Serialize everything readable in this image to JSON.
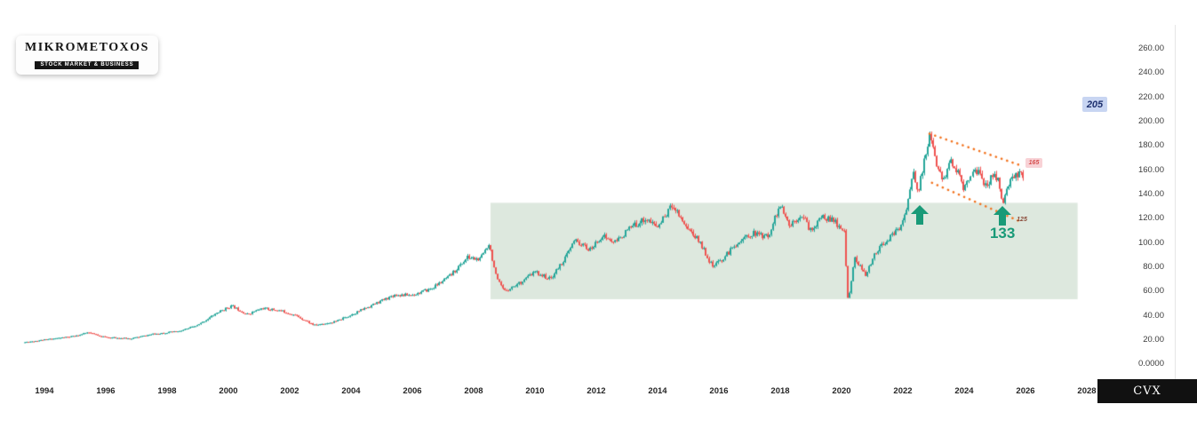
{
  "brand": {
    "name": "MIKROMETOXOS",
    "tagline": "STOCK MARKET & BUSINESS"
  },
  "ticker": {
    "symbol": "CVX"
  },
  "axes": {
    "y_labels": [
      "260.00",
      "240.00",
      "220.00",
      "200.00",
      "180.00",
      "160.00",
      "140.00",
      "120.00",
      "100.00",
      "80.00",
      "60.00",
      "40.00",
      "20.00",
      "0.0000"
    ],
    "x_labels": [
      "1994",
      "1996",
      "1998",
      "2000",
      "2002",
      "2004",
      "2006",
      "2008",
      "2010",
      "2012",
      "2014",
      "2016",
      "2018",
      "2020",
      "2022",
      "2024",
      "2026",
      "2028"
    ]
  },
  "annotations": {
    "target_label": "205",
    "resistance_label": "165",
    "support_label": "125",
    "arrow_price_label": "133"
  },
  "colors": {
    "up_candle": "#26a69a",
    "down_candle": "#ef5350",
    "zone_fill": "#dde8de",
    "channel_dots": "#f2711c",
    "arrow_green": "#199a78",
    "target_bg": "#c8d5f2",
    "target_text": "#1d2f6e",
    "resistance_bg": "#f8d2d6",
    "resistance_text": "#d64f4f",
    "support_text": "#8a4a38",
    "label_133": "#199a78"
  },
  "chart_data": {
    "type": "candlestick",
    "symbol": "CVX",
    "seed": 11,
    "candles": 562,
    "x_range_years": [
      1993.35,
      2025.9
    ],
    "price_axis": {
      "min": 0,
      "max": 268,
      "tick_step": 20
    },
    "x_axis_years": {
      "first": 1994,
      "last": 2028,
      "tick_step": 2
    },
    "anchors": [
      [
        1993.35,
        18
      ],
      [
        1994.3,
        21
      ],
      [
        1995.0,
        23
      ],
      [
        1995.4,
        26
      ],
      [
        1996.0,
        22
      ],
      [
        1996.8,
        21
      ],
      [
        1997.6,
        25
      ],
      [
        1998.4,
        27
      ],
      [
        1999.0,
        32
      ],
      [
        1999.6,
        42
      ],
      [
        2000.1,
        48
      ],
      [
        2000.6,
        41
      ],
      [
        2001.1,
        46
      ],
      [
        2001.7,
        44
      ],
      [
        2002.2,
        40
      ],
      [
        2002.8,
        32
      ],
      [
        2003.5,
        35
      ],
      [
        2004.2,
        43
      ],
      [
        2004.8,
        50
      ],
      [
        2005.4,
        57
      ],
      [
        2006.0,
        57
      ],
      [
        2006.6,
        62
      ],
      [
        2007.2,
        72
      ],
      [
        2007.8,
        88
      ],
      [
        2008.2,
        86
      ],
      [
        2008.5,
        100
      ],
      [
        2008.75,
        70
      ],
      [
        2009.0,
        60
      ],
      [
        2009.5,
        67
      ],
      [
        2010.0,
        76
      ],
      [
        2010.5,
        70
      ],
      [
        2011.0,
        88
      ],
      [
        2011.3,
        102
      ],
      [
        2011.8,
        94
      ],
      [
        2012.2,
        106
      ],
      [
        2012.6,
        100
      ],
      [
        2013.1,
        112
      ],
      [
        2013.6,
        120
      ],
      [
        2014.0,
        113
      ],
      [
        2014.5,
        132
      ],
      [
        2014.9,
        115
      ],
      [
        2015.4,
        100
      ],
      [
        2015.8,
        80
      ],
      [
        2016.1,
        86
      ],
      [
        2016.6,
        100
      ],
      [
        2017.1,
        108
      ],
      [
        2017.6,
        105
      ],
      [
        2018.0,
        131
      ],
      [
        2018.3,
        114
      ],
      [
        2018.7,
        124
      ],
      [
        2019.0,
        110
      ],
      [
        2019.4,
        122
      ],
      [
        2019.8,
        117
      ],
      [
        2020.1,
        108
      ],
      [
        2020.22,
        52
      ],
      [
        2020.45,
        88
      ],
      [
        2020.8,
        72
      ],
      [
        2021.1,
        92
      ],
      [
        2021.5,
        102
      ],
      [
        2021.9,
        112
      ],
      [
        2022.1,
        125
      ],
      [
        2022.35,
        158
      ],
      [
        2022.5,
        140
      ],
      [
        2022.75,
        172
      ],
      [
        2022.9,
        190
      ],
      [
        2023.1,
        162
      ],
      [
        2023.35,
        152
      ],
      [
        2023.55,
        168
      ],
      [
        2023.8,
        160
      ],
      [
        2023.95,
        145
      ],
      [
        2024.15,
        152
      ],
      [
        2024.35,
        162
      ],
      [
        2024.55,
        152
      ],
      [
        2024.75,
        148
      ],
      [
        2024.95,
        158
      ],
      [
        2025.1,
        150
      ],
      [
        2025.25,
        134
      ],
      [
        2025.5,
        150
      ],
      [
        2025.75,
        158
      ],
      [
        2025.9,
        155
      ]
    ],
    "zone": {
      "x1_year": 2008.55,
      "x2_year": 2027.7,
      "top_price": 133,
      "bottom_price": 53.5
    },
    "channel": {
      "upper": [
        [
          2022.87,
          190
        ],
        [
          2025.88,
          163.5
        ]
      ],
      "lower": [
        [
          2022.95,
          149.5
        ],
        [
          2025.88,
          117
        ]
      ]
    },
    "arrows": [
      {
        "year": 2022.55,
        "tip_price": 131
      },
      {
        "year": 2025.25,
        "tip_price": 130.5
      }
    ],
    "labels": {
      "target": 205,
      "resistance": 165,
      "support": 125,
      "arrow_level": 133
    }
  }
}
